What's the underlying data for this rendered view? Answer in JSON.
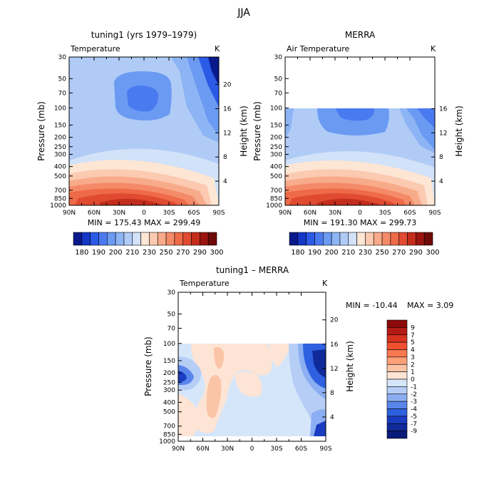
{
  "figure_title": "JJA",
  "chart_data": [
    {
      "type": "heatmap",
      "title": "tuning1 (yrs 1979–1979)",
      "subtitle": "Temperature",
      "units": "K",
      "ylabel": "Pressure (mb)",
      "ylabel_right": "Height (km)",
      "x_ticks": [
        "90N",
        "60N",
        "30N",
        "0",
        "30S",
        "60S",
        "90S"
      ],
      "y_ticks": [
        "30",
        "50",
        "70",
        "100",
        "150",
        "200",
        "250",
        "300",
        "400",
        "500",
        "700",
        "850",
        "1000"
      ],
      "y_ticks_right": [
        "4",
        "8",
        "12",
        "16",
        "20"
      ],
      "stats": "MIN = 175.43   MAX = 299.49",
      "data_pressure_top_mb": 30,
      "colorbar": {
        "orientation": "horizontal",
        "labels": [
          "180",
          "190",
          "200",
          "210",
          "230",
          "250",
          "270",
          "290",
          "300"
        ],
        "colors": [
          "#0a1a8c",
          "#1437c8",
          "#2a5ae6",
          "#4a7af0",
          "#6a9af2",
          "#8db4f4",
          "#b0cbf6",
          "#d2e2f8",
          "#fde6d4",
          "#fbcab0",
          "#f8ab8a",
          "#f48a68",
          "#ee6a48",
          "#e04a30",
          "#c42c1c",
          "#9a1410",
          "#6e0a08"
        ]
      }
    },
    {
      "type": "heatmap",
      "title": "MERRA",
      "subtitle": "Air Temperature",
      "units": "K",
      "ylabel": "Pressure (mb)",
      "ylabel_right": "Height (km)",
      "x_ticks": [
        "90N",
        "60N",
        "30N",
        "0",
        "30S",
        "60S",
        "90S"
      ],
      "y_ticks": [
        "30",
        "50",
        "70",
        "100",
        "150",
        "200",
        "250",
        "300",
        "400",
        "500",
        "700",
        "850",
        "1000"
      ],
      "y_ticks_right": [
        "4",
        "8",
        "12",
        "16"
      ],
      "stats": "MIN = 191.30   MAX = 299.73",
      "data_pressure_top_mb": 100,
      "colorbar": {
        "orientation": "horizontal",
        "labels": [
          "180",
          "190",
          "200",
          "210",
          "230",
          "250",
          "270",
          "290",
          "300"
        ],
        "colors": [
          "#0a1a8c",
          "#1437c8",
          "#2a5ae6",
          "#4a7af0",
          "#6a9af2",
          "#8db4f4",
          "#b0cbf6",
          "#d2e2f8",
          "#fde6d4",
          "#fbcab0",
          "#f8ab8a",
          "#f48a68",
          "#ee6a48",
          "#e04a30",
          "#c42c1c",
          "#9a1410",
          "#6e0a08"
        ]
      }
    },
    {
      "type": "heatmap",
      "title": "tuning1 – MERRA",
      "subtitle": "Temperature",
      "units": "K",
      "ylabel": "Pressure (mb)",
      "ylabel_right": "Height (km)",
      "x_ticks": [
        "90N",
        "60N",
        "30N",
        "0",
        "30S",
        "60S",
        "90S"
      ],
      "y_ticks": [
        "30",
        "50",
        "70",
        "100",
        "150",
        "200",
        "250",
        "300",
        "400",
        "500",
        "700",
        "850",
        "1000"
      ],
      "y_ticks_right": [
        "4",
        "8",
        "12",
        "16",
        "20"
      ],
      "stats_min": "MIN = -10.44",
      "stats_max": "MAX =    3.09",
      "data_pressure_top_mb": 100,
      "colorbar": {
        "orientation": "vertical",
        "labels": [
          "9",
          "7",
          "5",
          "4",
          "3",
          "2",
          "1",
          "0",
          "-1",
          "-2",
          "-3",
          "-4",
          "-5",
          "-7",
          "-9"
        ],
        "colors": [
          "#8c0a0a",
          "#b41a14",
          "#d83220",
          "#f05030",
          "#f87850",
          "#fba078",
          "#fcc4a6",
          "#fde4d4",
          "#d6e6fa",
          "#b6cef6",
          "#8caef2",
          "#5a86ec",
          "#2e60e0",
          "#1a3cc0",
          "#102a9a",
          "#0a1a78"
        ]
      }
    }
  ]
}
